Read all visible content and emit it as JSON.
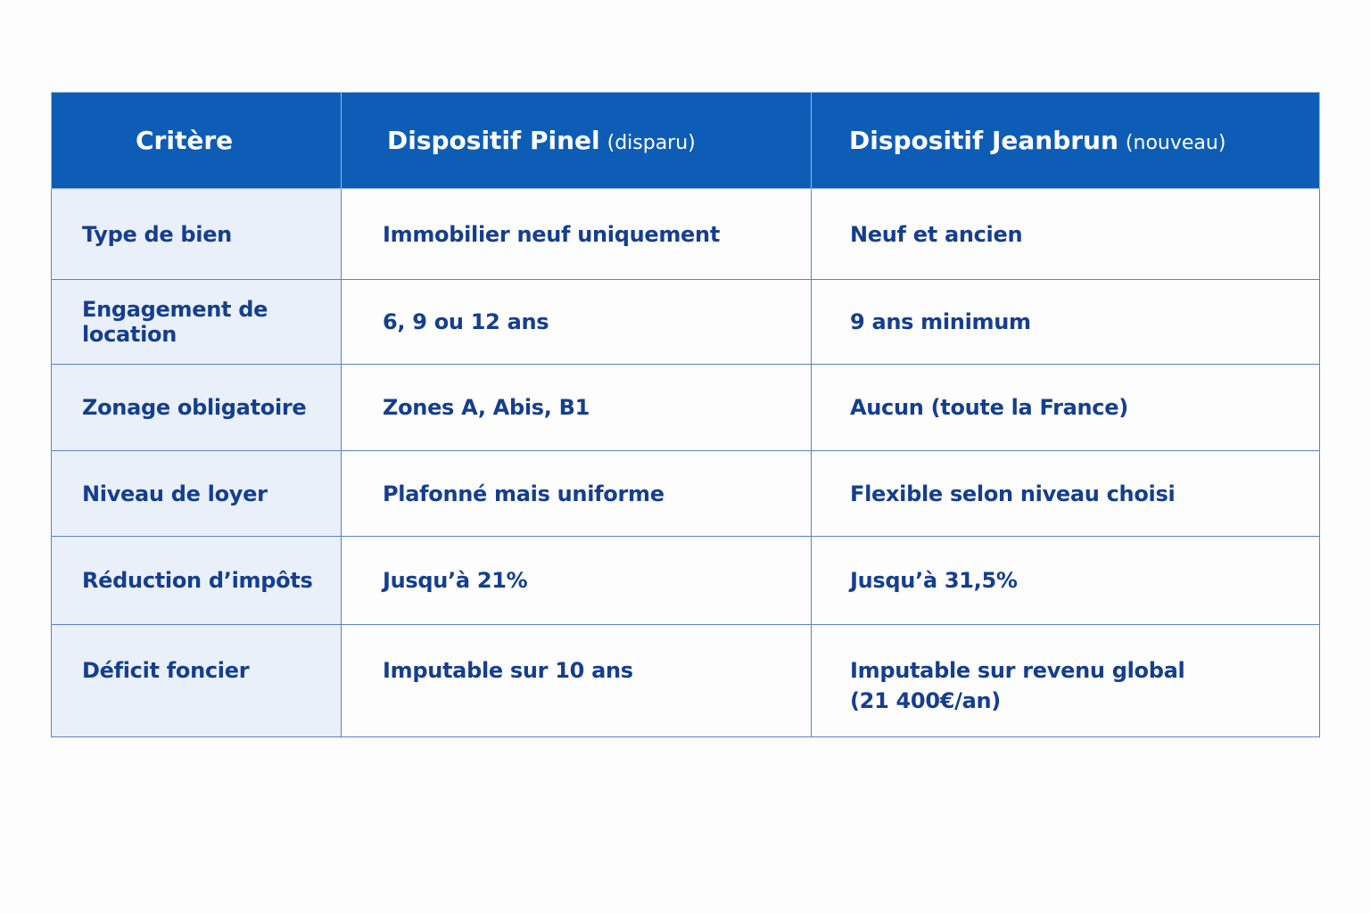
{
  "table": {
    "header": [
      {
        "main": "Critère"
      },
      {
        "main": "Dispositif Pinel",
        "note": "(disparu)"
      },
      {
        "main": "Dispositif Jeanbrun",
        "note": "(nouveau)"
      }
    ],
    "rows": [
      [
        "Type de bien",
        "Immobilier neuf uniquement",
        "Neuf et ancien"
      ],
      [
        "Engagement de location",
        "6, 9 ou 12 ans",
        "9 ans minimum"
      ],
      [
        "Zonage obligatoire",
        "Zones A, Abis, B1",
        "Aucun (toute la France)"
      ],
      [
        "Niveau de loyer",
        "Plafonné mais uniforme",
        "Flexible selon niveau choisi"
      ],
      [
        "Réduction d’impôts",
        "Jusqu’à 21%",
        "Jusqu’à 31,5%"
      ],
      [
        "Déficit foncier",
        "Imputable sur 10 ans",
        [
          "Imputable sur revenu global",
          "(21 400€/an)"
        ]
      ]
    ]
  }
}
